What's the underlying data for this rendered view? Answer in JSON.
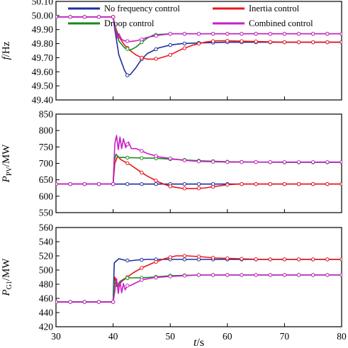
{
  "chart_data": [
    {
      "type": "line",
      "id": "frequency",
      "ylabel": "f/Hz",
      "ylabel_italic": "f",
      "ylabel_unit": "/Hz",
      "ylim": [
        49.4,
        50.1
      ],
      "yticks": [
        49.4,
        49.5,
        49.6,
        49.7,
        49.8,
        49.9,
        50.0,
        50.1
      ],
      "ytick_labels": [
        "49.40",
        "49.50",
        "49.60",
        "49.70",
        "49.80",
        "49.90",
        "50.00",
        "50.10"
      ],
      "xlim": [
        30,
        80
      ],
      "legend": [
        {
          "name": "No frequency control",
          "color": "#1f2f9e"
        },
        {
          "name": "Inertia control",
          "color": "#e8161b"
        },
        {
          "name": "Droop control",
          "color": "#18881e"
        },
        {
          "name": "Combined control",
          "color": "#c81fc8"
        }
      ],
      "series": [
        {
          "name": "No frequency control",
          "color": "#1f2f9e",
          "x": [
            30,
            40,
            40.3,
            41,
            42,
            42.5,
            43,
            44,
            45,
            46,
            48,
            50,
            52,
            55,
            60,
            65,
            70,
            75,
            80
          ],
          "y": [
            49.99,
            49.99,
            49.9,
            49.72,
            49.61,
            49.575,
            49.58,
            49.63,
            49.69,
            49.73,
            49.77,
            49.79,
            49.8,
            49.805,
            49.81,
            49.81,
            49.81,
            49.81,
            49.81
          ]
        },
        {
          "name": "Inertia control",
          "color": "#e8161b",
          "x": [
            30,
            40,
            40.3,
            41,
            42,
            43,
            44,
            45,
            46,
            47,
            48,
            50,
            52,
            54,
            56,
            58,
            60,
            65,
            70,
            75,
            80
          ],
          "y": [
            49.99,
            49.99,
            49.93,
            49.85,
            49.79,
            49.75,
            49.72,
            49.7,
            49.69,
            49.69,
            49.695,
            49.72,
            49.76,
            49.79,
            49.81,
            49.82,
            49.82,
            49.815,
            49.81,
            49.81,
            49.81
          ]
        },
        {
          "name": "Droop control",
          "color": "#18881e",
          "x": [
            30,
            40,
            40.3,
            41,
            42,
            43,
            44,
            45,
            46,
            47,
            48,
            50,
            55,
            60,
            65,
            70,
            75,
            80
          ],
          "y": [
            49.99,
            49.99,
            49.93,
            49.82,
            49.77,
            49.755,
            49.775,
            49.81,
            49.84,
            49.86,
            49.865,
            49.87,
            49.87,
            49.87,
            49.87,
            49.87,
            49.87,
            49.87
          ]
        },
        {
          "name": "Combined control",
          "color": "#c81fc8",
          "x": [
            30,
            40,
            40.3,
            40.7,
            41,
            41.5,
            42,
            43,
            44,
            45,
            46,
            48,
            50,
            55,
            60,
            65,
            70,
            75,
            80
          ],
          "y": [
            49.99,
            49.99,
            49.92,
            49.84,
            49.87,
            49.83,
            49.82,
            49.815,
            49.82,
            49.83,
            49.845,
            49.86,
            49.87,
            49.87,
            49.87,
            49.87,
            49.87,
            49.87,
            49.87
          ]
        }
      ]
    },
    {
      "type": "line",
      "id": "pv_power",
      "ylabel": "PPV/MW",
      "ylabel_italic": "P",
      "ylabel_sub": "PV",
      "ylabel_unit": "/MW",
      "ylim": [
        550,
        850
      ],
      "yticks": [
        550,
        600,
        650,
        700,
        750,
        800,
        850
      ],
      "ytick_labels": [
        "550",
        "600",
        "650",
        "700",
        "750",
        "800",
        "850"
      ],
      "xlim": [
        30,
        80
      ],
      "series": [
        {
          "name": "No frequency control",
          "color": "#1f2f9e",
          "x": [
            30,
            80
          ],
          "y": [
            637,
            637
          ]
        },
        {
          "name": "Inertia control",
          "color": "#e8161b",
          "x": [
            30,
            40,
            40.3,
            40.8,
            41.3,
            42,
            43,
            44,
            45,
            46,
            47,
            48,
            49,
            50,
            52,
            54,
            56,
            58,
            60,
            62,
            65,
            70,
            75,
            80
          ],
          "y": [
            637,
            637,
            700,
            722,
            712,
            705,
            696,
            684,
            672,
            661,
            652,
            643,
            636,
            630,
            624,
            623,
            625,
            630,
            635,
            637,
            637,
            637,
            637,
            637
          ]
        },
        {
          "name": "Droop control",
          "color": "#18881e",
          "x": [
            30,
            40,
            40.2,
            40.5,
            41,
            42,
            43,
            44,
            45,
            47,
            50,
            55,
            60,
            65,
            70,
            75,
            80
          ],
          "y": [
            637,
            637,
            705,
            728,
            718,
            718,
            717,
            717,
            716,
            716,
            713,
            708,
            705,
            704,
            703,
            703,
            703
          ]
        },
        {
          "name": "Combined control",
          "color": "#c81fc8",
          "x": [
            30,
            40,
            40.3,
            40.6,
            40.9,
            41.2,
            41.5,
            41.8,
            42.2,
            42.7,
            43.2,
            44,
            45,
            46,
            47,
            48,
            50,
            52,
            55,
            60,
            65,
            70,
            75,
            80
          ],
          "y": [
            637,
            637,
            760,
            785,
            742,
            780,
            745,
            775,
            748,
            765,
            745,
            745,
            738,
            730,
            725,
            720,
            715,
            710,
            706,
            704,
            704,
            704,
            704,
            704
          ]
        }
      ]
    },
    {
      "type": "line",
      "id": "generator_power",
      "ylabel": "PG1/MW",
      "ylabel_italic": "P",
      "ylabel_sub": "G1",
      "ylabel_unit": "/MW",
      "ylim": [
        420,
        560
      ],
      "yticks": [
        420,
        440,
        460,
        480,
        500,
        520,
        540,
        560
      ],
      "ytick_labels": [
        "420",
        "440",
        "460",
        "480",
        "500",
        "520",
        "540",
        "560"
      ],
      "xlim": [
        30,
        80
      ],
      "xticks": [
        30,
        40,
        50,
        60,
        70,
        80
      ],
      "xtick_labels": [
        "30",
        "40",
        "50",
        "60",
        "70",
        "80"
      ],
      "xlabel": "t/s",
      "xlabel_italic": "t",
      "xlabel_unit": "/s",
      "series": [
        {
          "name": "No frequency control",
          "color": "#1f2f9e",
          "x": [
            30,
            40,
            40.2,
            41,
            42,
            43,
            44,
            46,
            50,
            55,
            60,
            65,
            70,
            75,
            80
          ],
          "y": [
            455,
            455,
            510,
            516,
            514,
            513,
            514,
            515,
            515,
            515,
            515,
            515,
            515,
            515,
            515
          ]
        },
        {
          "name": "Inertia control",
          "color": "#e8161b",
          "x": [
            30,
            40,
            40.3,
            40.8,
            41.5,
            42.5,
            43.5,
            45,
            47,
            49,
            51,
            53,
            55,
            58,
            62,
            66,
            70,
            75,
            80
          ],
          "y": [
            455,
            455,
            490,
            476,
            484,
            490,
            496,
            503,
            510,
            516,
            520,
            520,
            519,
            517,
            516,
            515,
            515,
            515,
            515
          ]
        },
        {
          "name": "Droop control",
          "color": "#18881e",
          "x": [
            30,
            40,
            40.2,
            40.6,
            41.2,
            42,
            43,
            45,
            47,
            50,
            55,
            60,
            65,
            70,
            75,
            80
          ],
          "y": [
            455,
            455,
            485,
            477,
            484,
            488,
            489,
            489,
            490,
            492,
            493,
            493,
            493,
            493,
            493,
            493
          ]
        },
        {
          "name": "Combined control",
          "color": "#c81fc8",
          "x": [
            30,
            40,
            40.3,
            40.6,
            40.9,
            41.2,
            41.5,
            41.8,
            42.1,
            42.5,
            43,
            44,
            45,
            47,
            50,
            55,
            60,
            65,
            70,
            75,
            80
          ],
          "y": [
            455,
            455,
            470,
            488,
            467,
            484,
            468,
            481,
            472,
            478,
            478,
            482,
            486,
            489,
            491,
            493,
            493,
            493,
            493,
            493,
            493
          ]
        }
      ]
    }
  ]
}
